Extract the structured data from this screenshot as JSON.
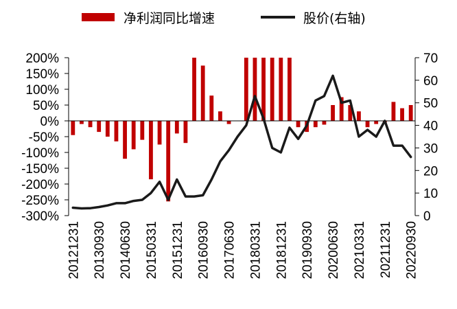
{
  "chart_data": {
    "type": "bar+line",
    "title": "",
    "xlabel": "",
    "ylabel": "",
    "legend_position": "top",
    "grid": false,
    "x_tick_labels": [
      "20121231",
      "20130930",
      "20140630",
      "20150331",
      "20151231",
      "20160930",
      "20170630",
      "20180331",
      "20181231",
      "20190930",
      "20200630",
      "20210331",
      "20211231",
      "20220930"
    ],
    "left_axis": {
      "ylim": [
        -300,
        200
      ],
      "tick_labels": [
        "200%",
        "150%",
        "100%",
        "50%",
        "0%",
        "-50%",
        "-100%",
        "-150%",
        "-200%",
        "-250%",
        "-300%"
      ]
    },
    "right_axis": {
      "ylim": [
        0,
        70
      ],
      "tick_labels": [
        "70",
        "60",
        "50",
        "40",
        "30",
        "20",
        "10",
        "0"
      ]
    },
    "categories": [
      "20121231",
      "20130331",
      "20130630",
      "20130930",
      "20131231",
      "20140331",
      "20140630",
      "20140930",
      "20141231",
      "20150331",
      "20150630",
      "20150930",
      "20151231",
      "20160331",
      "20160630",
      "20160930",
      "20161231",
      "20170331",
      "20170630",
      "20170930",
      "20171231",
      "20180331",
      "20180630",
      "20180930",
      "20181231",
      "20190331",
      "20190630",
      "20190930",
      "20191231",
      "20200331",
      "20200630",
      "20200930",
      "20201231",
      "20210331",
      "20210630",
      "20210930",
      "20211231",
      "20220331",
      "20220630",
      "20220930"
    ],
    "series": [
      {
        "name": "净利润同比增速",
        "type": "bar",
        "axis": "left",
        "color": "#C00000",
        "values": [
          -45,
          -10,
          -20,
          -35,
          -50,
          -65,
          -120,
          -90,
          -60,
          -185,
          -75,
          -255,
          -40,
          -70,
          200,
          175,
          80,
          30,
          -10,
          0,
          200,
          200,
          200,
          200,
          200,
          200,
          -20,
          -35,
          -20,
          -12,
          50,
          75,
          50,
          30,
          -20,
          -10,
          -5,
          60,
          40,
          50
        ]
      },
      {
        "name": "股价(右轴)",
        "type": "line",
        "axis": "right",
        "color": "#1A1A1A",
        "values": [
          3.5,
          3.2,
          3.3,
          3.8,
          4.5,
          5.5,
          5.5,
          6.5,
          7,
          10,
          15,
          7,
          16,
          8.5,
          8.5,
          9,
          16,
          24,
          29,
          35,
          40,
          53,
          43,
          30,
          28,
          39,
          34,
          40,
          51,
          53,
          62,
          50,
          51,
          35,
          38,
          35,
          42,
          31,
          31,
          26
        ]
      }
    ]
  }
}
